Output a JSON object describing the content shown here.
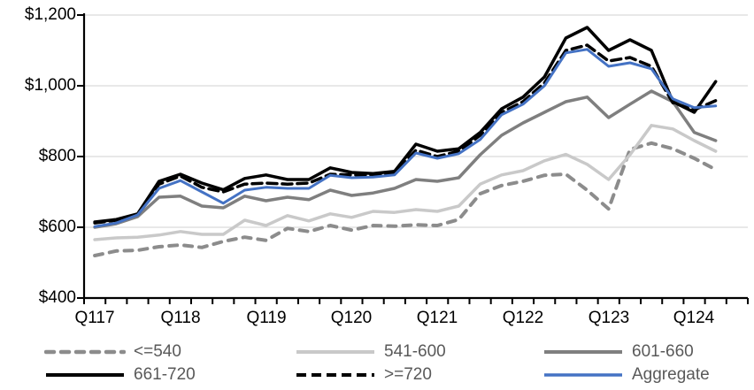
{
  "chart_data": {
    "type": "line",
    "title": "",
    "x": [
      "Q117",
      "Q217",
      "Q317",
      "Q417",
      "Q118",
      "Q218",
      "Q318",
      "Q418",
      "Q119",
      "Q219",
      "Q319",
      "Q419",
      "Q120",
      "Q220",
      "Q320",
      "Q420",
      "Q121",
      "Q221",
      "Q321",
      "Q421",
      "Q122",
      "Q222",
      "Q322",
      "Q422",
      "Q123",
      "Q223",
      "Q323",
      "Q423",
      "Q124",
      "Q224"
    ],
    "x_axis_labels_shown": [
      "Q117",
      "Q118",
      "Q119",
      "Q120",
      "Q121",
      "Q122",
      "Q123",
      "Q124"
    ],
    "y_axis": {
      "min": 400,
      "max": 1200,
      "tick_interval": 200,
      "tick_labels": [
        "$400",
        "$600",
        "$800",
        "$1,000",
        "$1,200"
      ],
      "format": "currency"
    },
    "grid": "horizontal",
    "legend_position": "bottom",
    "series": [
      {
        "name": "<=540",
        "color": "#8C8C8C",
        "style": "dashed",
        "width": 4,
        "dash": "9 8",
        "values": [
          520,
          533,
          535,
          545,
          550,
          543,
          560,
          572,
          563,
          597,
          588,
          605,
          592,
          605,
          603,
          607,
          605,
          622,
          695,
          718,
          730,
          747,
          750,
          705,
          652,
          820,
          838,
          822,
          795,
          763
        ]
      },
      {
        "name": "541-600",
        "color": "#C9C9C9",
        "style": "solid",
        "width": 3.5,
        "dash": "",
        "values": [
          565,
          570,
          572,
          578,
          588,
          580,
          580,
          620,
          605,
          633,
          618,
          638,
          628,
          645,
          642,
          650,
          645,
          660,
          722,
          748,
          760,
          788,
          806,
          778,
          735,
          805,
          888,
          878,
          845,
          815
        ]
      },
      {
        "name": "601-660",
        "color": "#7F7F7F",
        "style": "solid",
        "width": 3.5,
        "dash": "",
        "values": [
          600,
          610,
          630,
          685,
          688,
          660,
          655,
          688,
          675,
          685,
          678,
          705,
          690,
          697,
          710,
          735,
          730,
          740,
          805,
          860,
          895,
          925,
          955,
          968,
          910,
          948,
          985,
          955,
          868,
          845
        ]
      },
      {
        "name": "661-720",
        "color": "#000000",
        "style": "solid",
        "width": 3.5,
        "dash": "",
        "values": [
          615,
          622,
          638,
          730,
          750,
          725,
          706,
          738,
          748,
          735,
          735,
          768,
          755,
          752,
          758,
          835,
          815,
          822,
          868,
          935,
          968,
          1025,
          1135,
          1165,
          1100,
          1130,
          1100,
          955,
          925,
          1012
        ]
      },
      {
        "name": ">=720",
        "color": "#000000",
        "style": "dashed",
        "width": 3.5,
        "dash": "11 6",
        "values": [
          612,
          620,
          635,
          722,
          745,
          713,
          700,
          722,
          725,
          722,
          725,
          750,
          748,
          748,
          752,
          818,
          800,
          815,
          860,
          925,
          955,
          1008,
          1100,
          1115,
          1070,
          1080,
          1055,
          952,
          932,
          958
        ]
      },
      {
        "name": "Aggregate",
        "color": "#4472C4",
        "style": "solid",
        "width": 3,
        "dash": "",
        "values": [
          602,
          612,
          635,
          710,
          732,
          700,
          668,
          705,
          713,
          710,
          710,
          747,
          740,
          742,
          748,
          810,
          795,
          808,
          848,
          918,
          948,
          1000,
          1093,
          1103,
          1055,
          1065,
          1048,
          963,
          938,
          943
        ]
      }
    ]
  },
  "colors": {
    "grid": "#D9D9D9",
    "axis": "#000000",
    "legend_text": "#595959",
    "background": "#FFFFFF"
  }
}
